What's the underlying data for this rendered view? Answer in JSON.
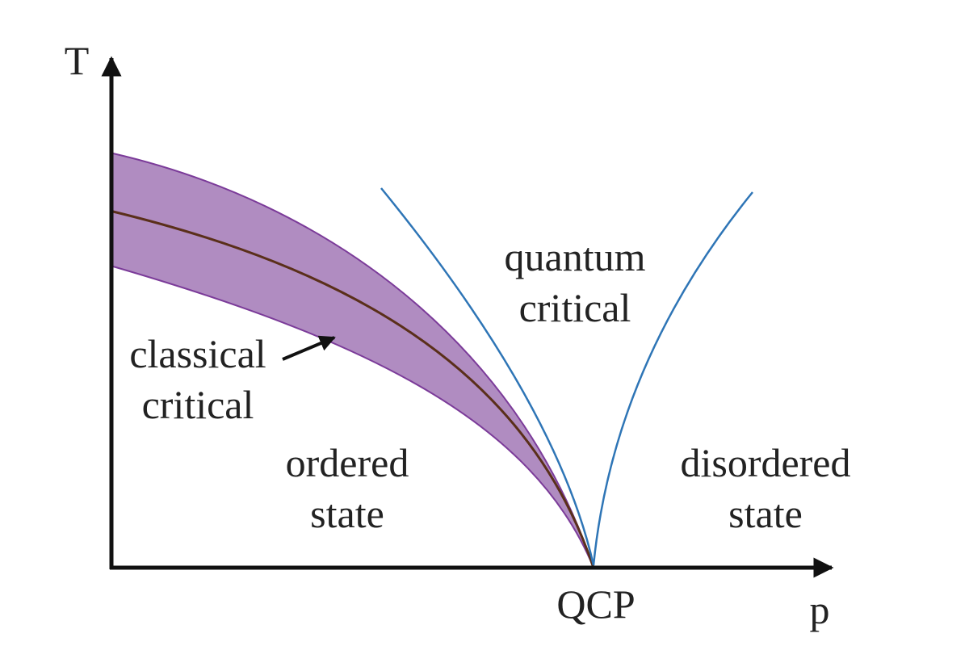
{
  "axes": {
    "y_label": "T",
    "x_label": "p",
    "point_label": "QCP"
  },
  "regions": {
    "quantum_critical": {
      "lines": [
        "quantum",
        "critical"
      ]
    },
    "classical_critical": {
      "lines": [
        "classical",
        "critical"
      ]
    },
    "ordered": {
      "lines": [
        "ordered",
        "state"
      ]
    },
    "disordered": {
      "lines": [
        "disordered",
        "state"
      ]
    }
  }
}
